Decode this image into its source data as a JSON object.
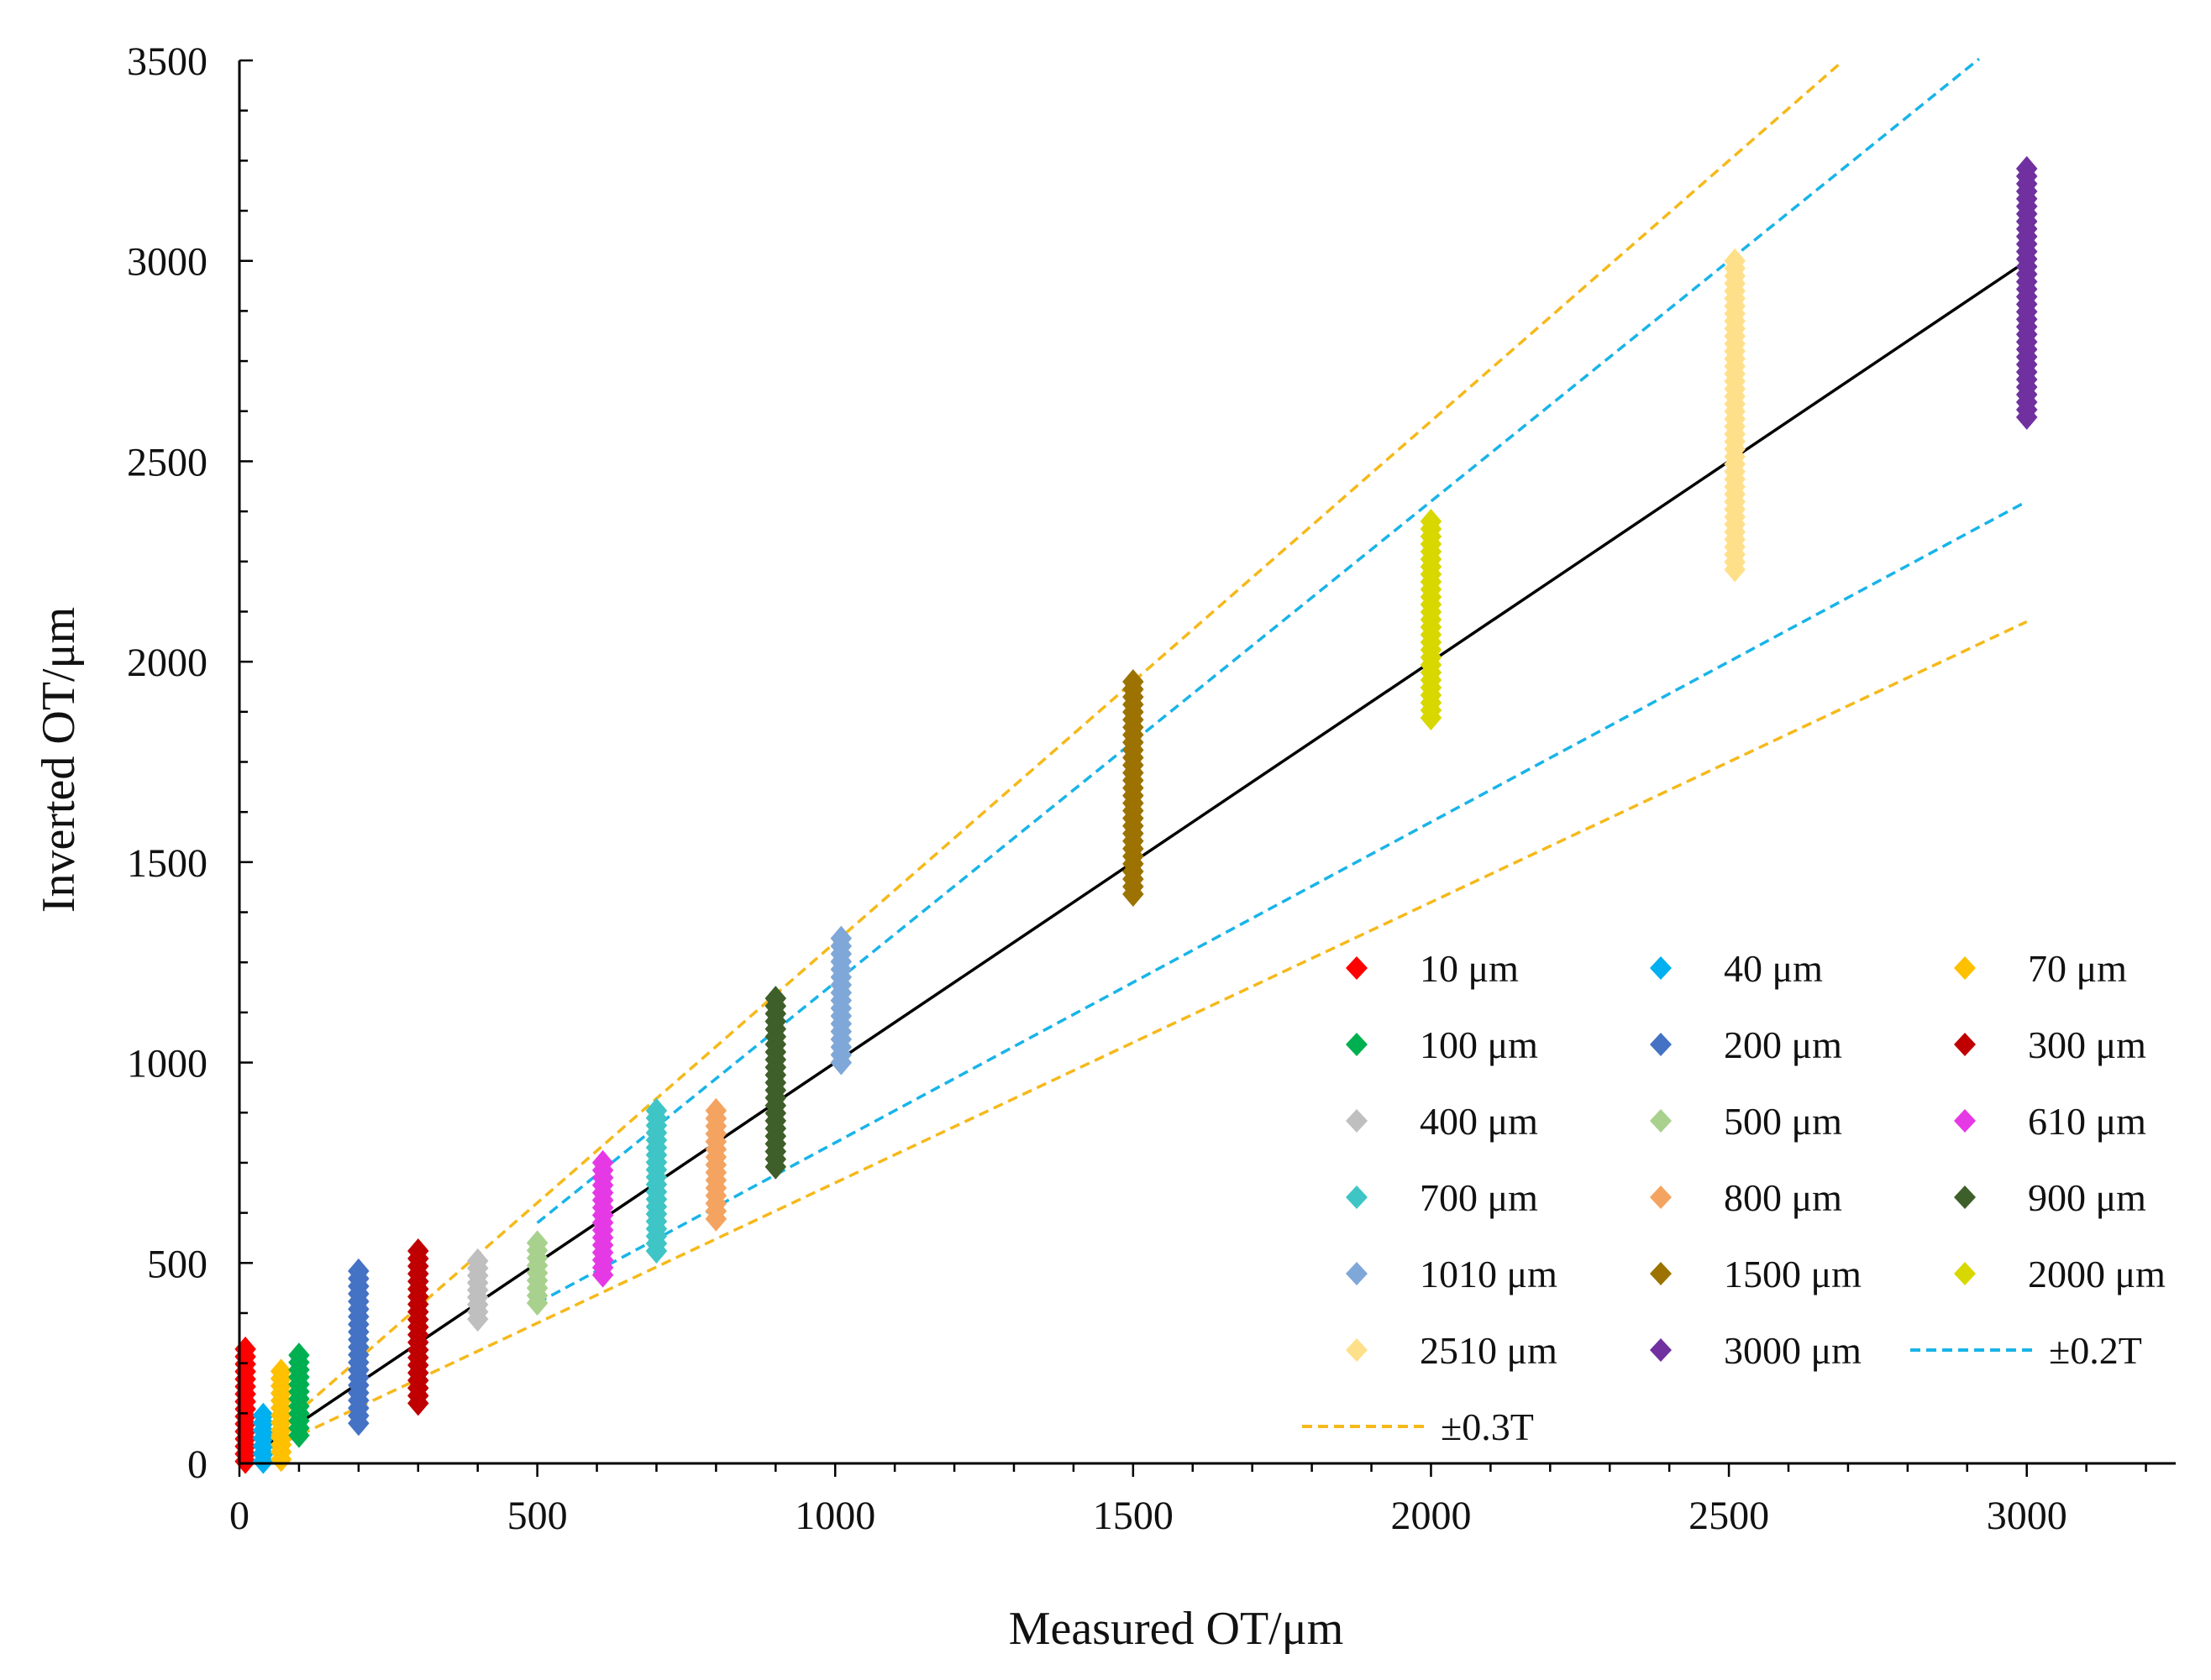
{
  "chart_data": {
    "type": "scatter",
    "xlabel": "Measured OT/μm",
    "ylabel": "Inverted OT/μm",
    "xlim": [
      0,
      3250
    ],
    "ylim": [
      0,
      3500
    ],
    "xticks": [
      0,
      500,
      1000,
      1500,
      2000,
      2500,
      3000
    ],
    "yticks": [
      0,
      500,
      1000,
      1500,
      2000,
      2500,
      3000,
      3500
    ],
    "grid": false,
    "legend_position": "bottom-right",
    "series": [
      {
        "name": "10 μm",
        "x": 10,
        "color": "#ff0000",
        "min": 5,
        "max": 285
      },
      {
        "name": "40 μm",
        "x": 40,
        "color": "#00b0f0",
        "min": 5,
        "max": 120
      },
      {
        "name": "70 μm",
        "x": 70,
        "color": "#ffc000",
        "min": 10,
        "max": 230
      },
      {
        "name": "100 μm",
        "x": 100,
        "color": "#00b050",
        "min": 70,
        "max": 270
      },
      {
        "name": "200 μm",
        "x": 200,
        "color": "#4472c4",
        "min": 100,
        "max": 480
      },
      {
        "name": "300 μm",
        "x": 300,
        "color": "#c00000",
        "min": 150,
        "max": 530
      },
      {
        "name": "400 μm",
        "x": 400,
        "color": "#bfbfbf",
        "min": 360,
        "max": 505
      },
      {
        "name": "500 μm",
        "x": 500,
        "color": "#a9d18e",
        "min": 400,
        "max": 550
      },
      {
        "name": "610 μm",
        "x": 610,
        "color": "#e639e6",
        "min": 470,
        "max": 750
      },
      {
        "name": "700 μm",
        "x": 700,
        "color": "#3fc5c5",
        "min": 530,
        "max": 880
      },
      {
        "name": "800 μm",
        "x": 800,
        "color": "#f4a460",
        "min": 610,
        "max": 880
      },
      {
        "name": "900 μm",
        "x": 900,
        "color": "#3e5f2a",
        "min": 740,
        "max": 1160
      },
      {
        "name": "1010 μm",
        "x": 1010,
        "color": "#7fa8d9",
        "min": 1000,
        "max": 1310
      },
      {
        "name": "1500 μm",
        "x": 1500,
        "color": "#9c7200",
        "min": 1420,
        "max": 1950
      },
      {
        "name": "2000 μm",
        "x": 2000,
        "color": "#d8d800",
        "min": 1860,
        "max": 2350
      },
      {
        "name": "2510 μm",
        "x": 2510,
        "color": "#ffe08a",
        "min": 2230,
        "max": 3000
      },
      {
        "name": "3000 μm",
        "x": 3000,
        "color": "#7030a0",
        "min": 2610,
        "max": 3230
      }
    ],
    "lines": [
      {
        "name": "y = x",
        "color": "#000000",
        "dash": false,
        "x": [
          30,
          3000
        ],
        "y": [
          30,
          3000
        ],
        "in_legend": false
      },
      {
        "name": "±0.2T",
        "color": "#18b4e8",
        "dash": true,
        "x": [
          500,
          2920
        ],
        "y": [
          600,
          3504
        ],
        "in_legend": true
      },
      {
        "name": "±0.2T",
        "color": "#18b4e8",
        "dash": true,
        "x": [
          500,
          3000
        ],
        "y": [
          400,
          2400
        ],
        "in_legend": false
      },
      {
        "name": "±0.3T",
        "color": "#f5b91a",
        "dash": true,
        "x": [
          30,
          2690
        ],
        "y": [
          39,
          3497
        ],
        "in_legend": true
      },
      {
        "name": "±0.3T",
        "color": "#f5b91a",
        "dash": true,
        "x": [
          30,
          3000
        ],
        "y": [
          21,
          2100
        ],
        "in_legend": false
      }
    ],
    "legend": [
      [
        "10 μm",
        "40 μm",
        "70 μm"
      ],
      [
        "100 μm",
        "200 μm",
        "300 μm"
      ],
      [
        "400 μm",
        "500 μm",
        "610 μm"
      ],
      [
        "700 μm",
        "800 μm",
        "900 μm"
      ],
      [
        "1010 μm",
        "1500 μm",
        "2000 μm"
      ],
      [
        "2510 μm",
        "3000 μm",
        "±0.2T"
      ],
      [
        "±0.3T"
      ]
    ]
  }
}
